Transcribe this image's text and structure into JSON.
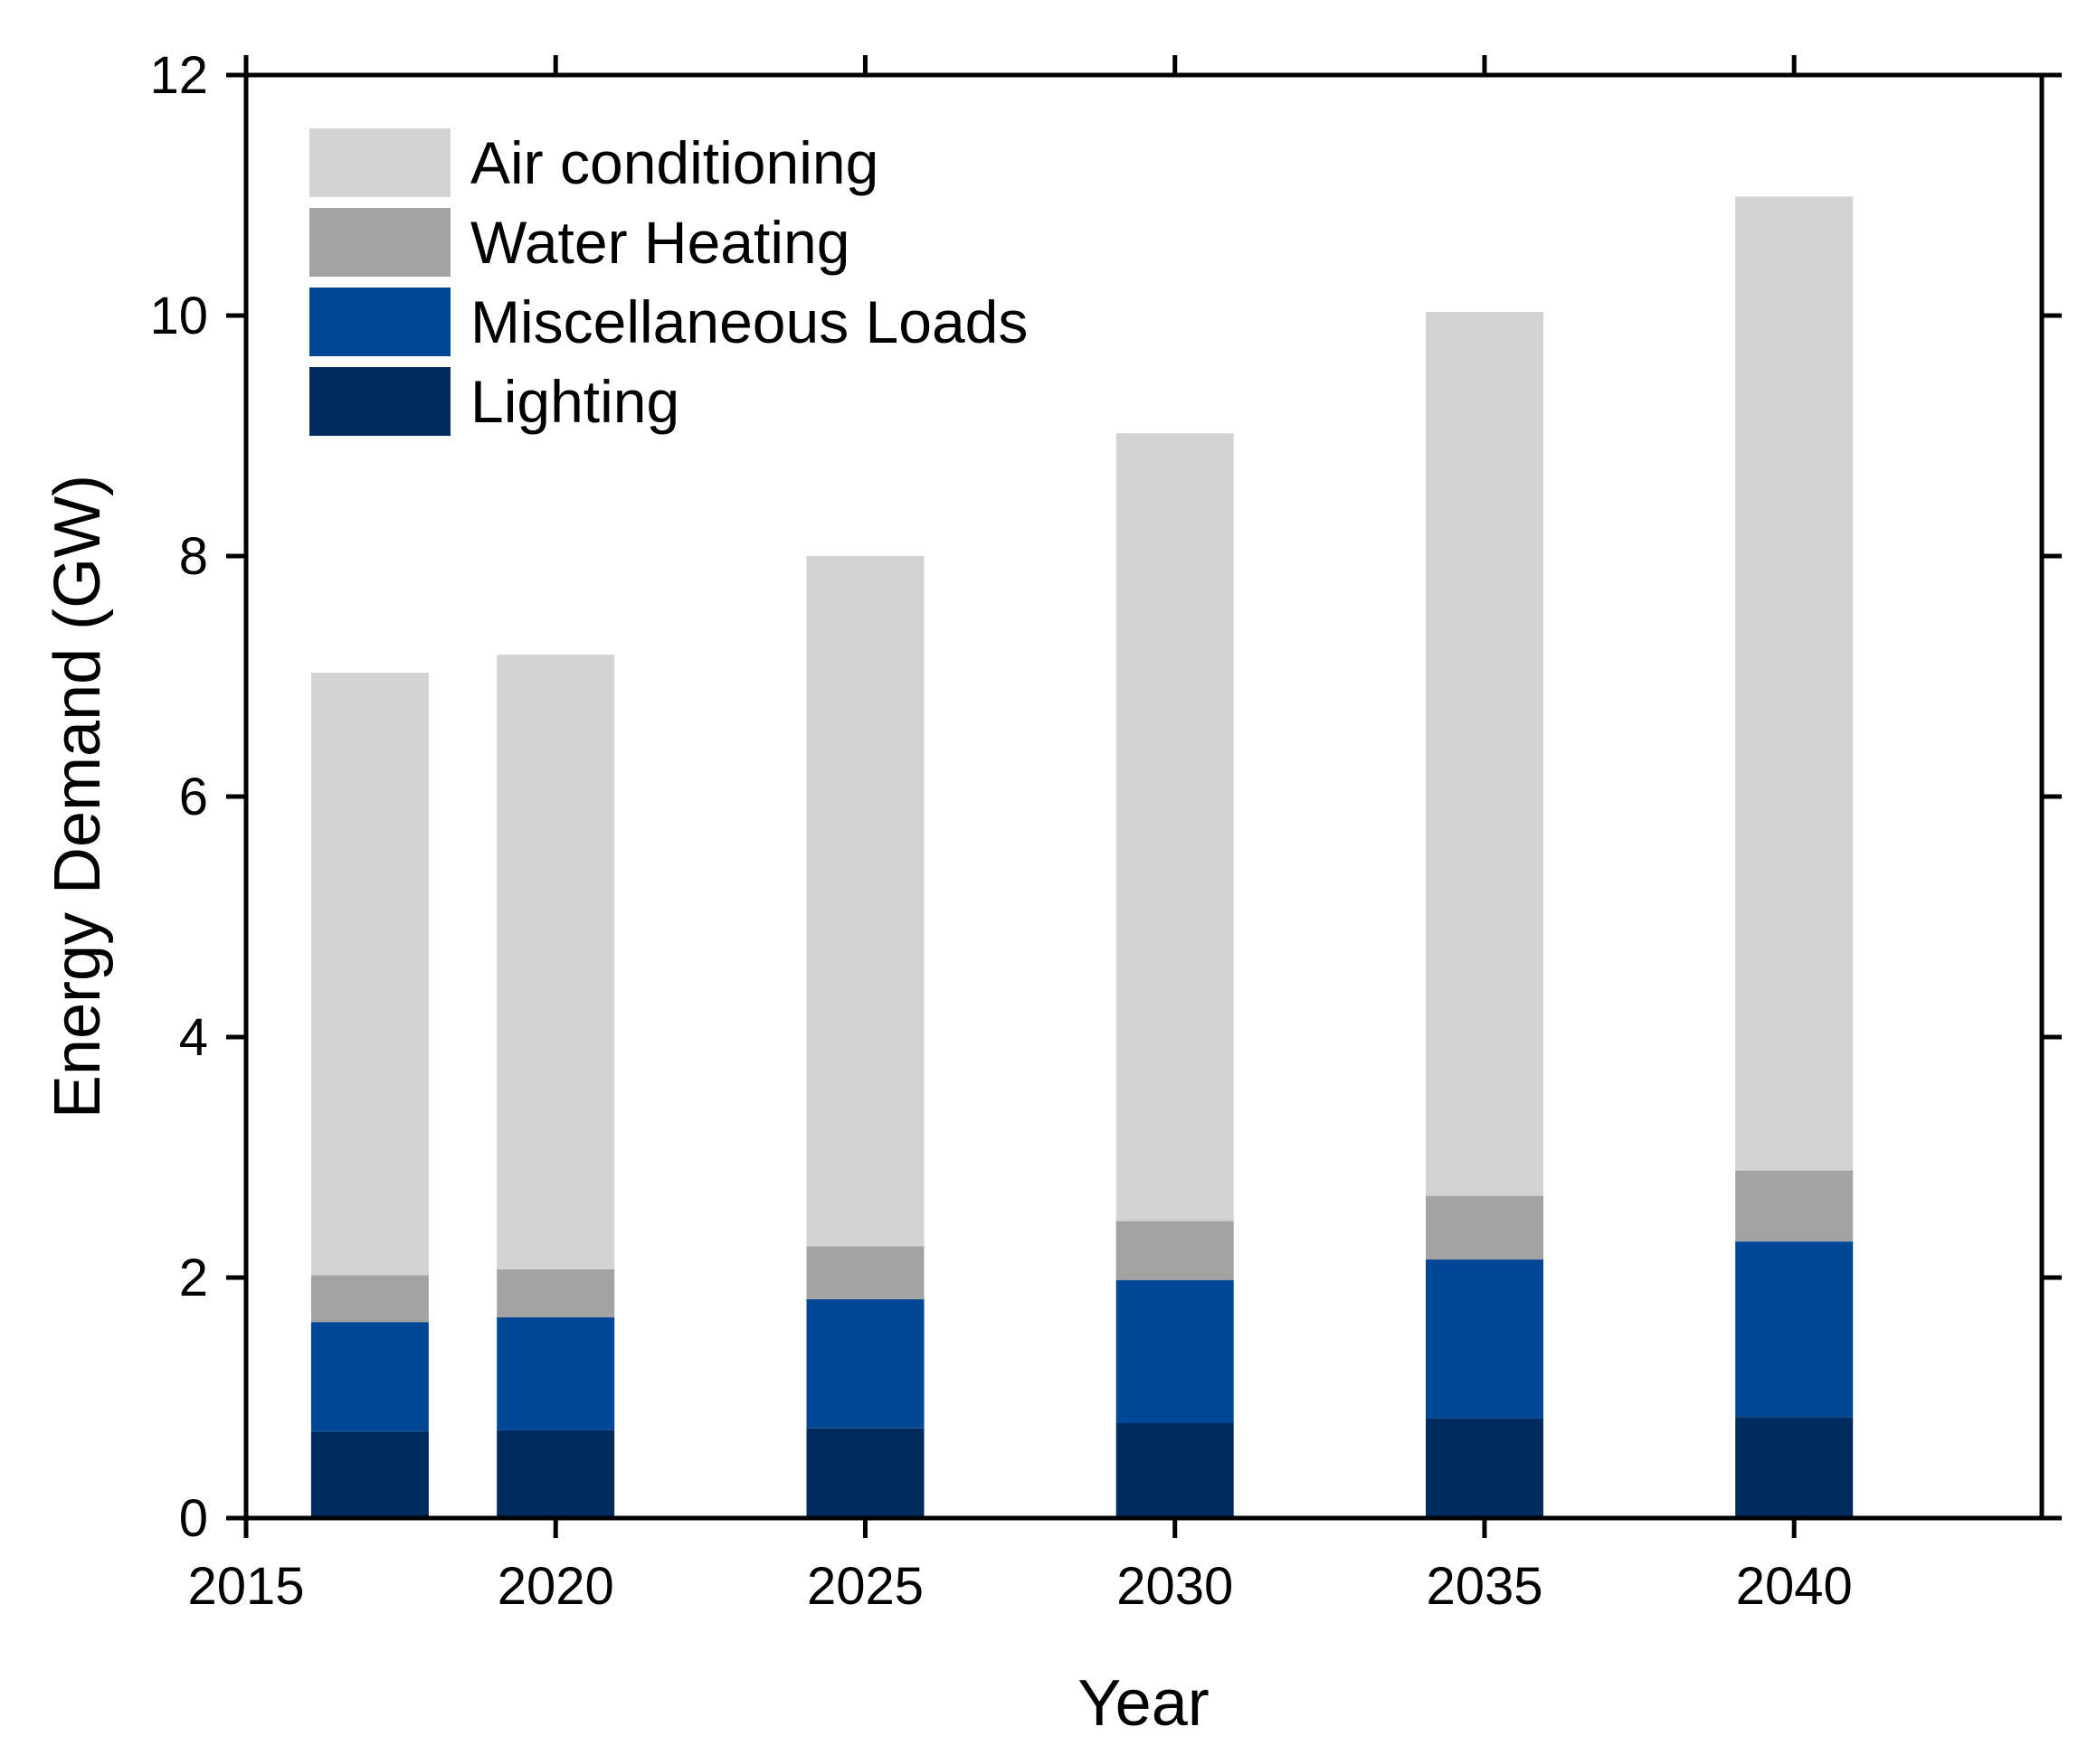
{
  "chart_data": {
    "type": "bar",
    "stacked": true,
    "title": "",
    "xlabel": "Year",
    "ylabel": "Energy Demand (GW)",
    "xlim": [
      2015,
      2044
    ],
    "ylim": [
      0,
      12
    ],
    "x_ticks": [
      2015,
      2020,
      2025,
      2030,
      2035,
      2040
    ],
    "y_ticks": [
      0,
      2,
      4,
      6,
      8,
      10,
      12
    ],
    "x": [
      2017,
      2020,
      2025,
      2030,
      2035,
      2040
    ],
    "series": [
      {
        "name": "Lighting",
        "color": "#002b5e",
        "values": [
          0.72,
          0.73,
          0.75,
          0.79,
          0.83,
          0.84
        ]
      },
      {
        "name": "Miscellaneous Loads",
        "color": "#004796",
        "values": [
          0.91,
          0.94,
          1.07,
          1.19,
          1.32,
          1.46
        ]
      },
      {
        "name": "Water Heating",
        "color": "#a3a3a3",
        "values": [
          0.39,
          0.4,
          0.44,
          0.49,
          0.53,
          0.59
        ]
      },
      {
        "name": "Air conditioning",
        "color": "#d3d3d3",
        "values": [
          5.01,
          5.11,
          5.74,
          6.55,
          7.35,
          8.1
        ]
      }
    ],
    "legend_order": [
      "Air conditioning",
      "Water Heating",
      "Miscellaneous Loads",
      "Lighting"
    ],
    "legend_position": "top-left",
    "grid": false
  }
}
